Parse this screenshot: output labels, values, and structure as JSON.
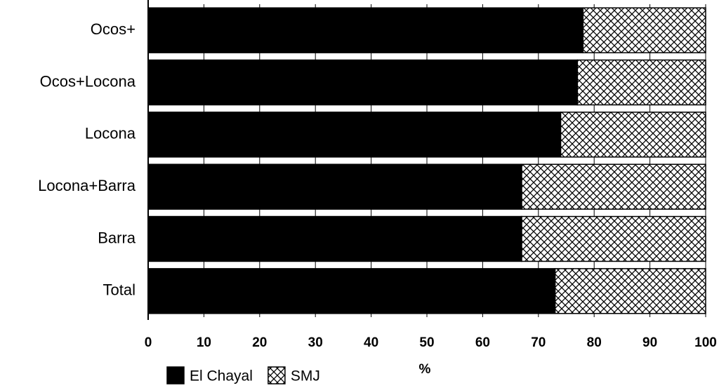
{
  "chart_data": {
    "type": "stacked-barh",
    "categories": [
      "Ocos+",
      "Ocos+Locona",
      "Locona",
      "Locona+Barra",
      "Barra",
      "Total"
    ],
    "series": [
      {
        "name": "El Chayal",
        "color": "#000000",
        "values": [
          78,
          77,
          74,
          67,
          67,
          73
        ]
      },
      {
        "name": "SMJ",
        "color": "#000000",
        "hatch": "crosshatch",
        "values": [
          22,
          23,
          26,
          33,
          33,
          27
        ]
      }
    ],
    "xlabel": "%",
    "xlim": [
      0,
      100
    ],
    "xticks": [
      0,
      10,
      20,
      30,
      40,
      50,
      60,
      70,
      80,
      90,
      100
    ],
    "grid": true,
    "legend": "bottom"
  }
}
